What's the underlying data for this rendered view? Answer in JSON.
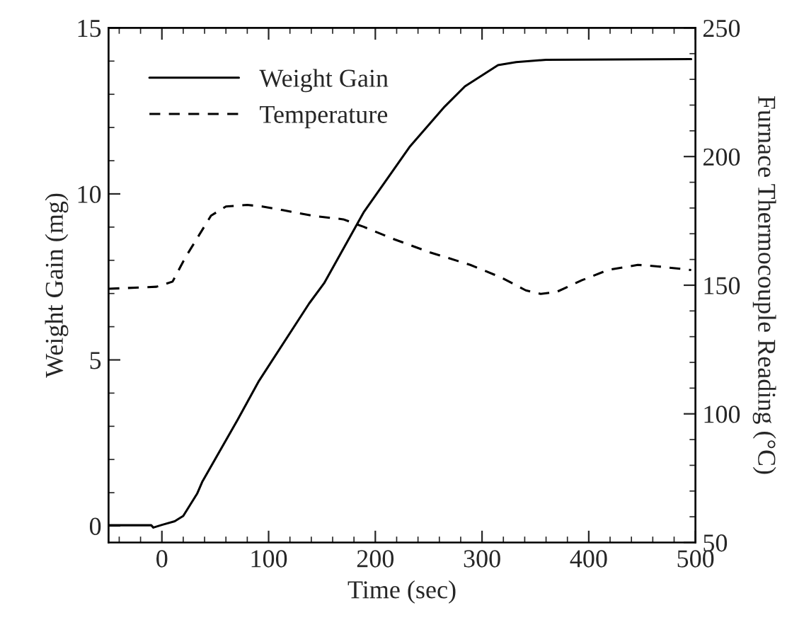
{
  "chart_data": {
    "type": "line",
    "xlabel": "Time (sec)",
    "ylabel": "Weight Gain (mg)",
    "y2label": "Furnace Thermocouple Reading (°C)",
    "xlim": [
      -50,
      500
    ],
    "xticks": [
      0,
      100,
      200,
      300,
      400,
      500
    ],
    "ylim": [
      -0.5,
      15
    ],
    "yticks": [
      0,
      5,
      10,
      15
    ],
    "y2lim": [
      50,
      250
    ],
    "y2ticks": [
      50,
      100,
      150,
      200,
      250
    ],
    "legend": "top left",
    "grid": false,
    "series": [
      {
        "name": "Weight Gain",
        "color": "#000000",
        "line_style": "solid",
        "x": [
          -50,
          -10,
          -8,
          0,
          12,
          20,
          33,
          38,
          71,
          91,
          138,
          152,
          189,
          232,
          265,
          284,
          315,
          332,
          360,
          496
        ],
        "values": [
          0.02,
          0.02,
          -0.05,
          0.03,
          0.14,
          0.3,
          0.97,
          1.34,
          3.2,
          4.37,
          6.7,
          7.31,
          9.44,
          11.41,
          12.63,
          13.24,
          13.88,
          13.97,
          14.04,
          14.06
        ]
      },
      {
        "name": "Temperature",
        "color": "#000000",
        "line_style": "dashed",
        "axis": "y2",
        "x": [
          -50,
          -5,
          10,
          22,
          46,
          60,
          80,
          94,
          113,
          141,
          170,
          189,
          218,
          251,
          289,
          318,
          341,
          355,
          370,
          394,
          418,
          446,
          465,
          496
        ],
        "values": [
          148.6,
          149.4,
          151.4,
          160.8,
          177,
          180.6,
          181.2,
          180.6,
          179.2,
          177,
          175.6,
          172.7,
          167.8,
          162.8,
          157.9,
          153,
          148,
          146.6,
          147.4,
          152,
          155.9,
          157.9,
          157.3,
          155.9
        ]
      }
    ]
  }
}
